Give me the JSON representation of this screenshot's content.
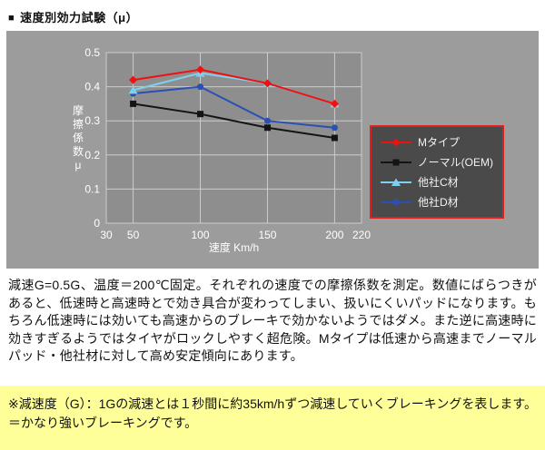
{
  "header": {
    "bullet": "■",
    "title": "速度別効力試験（μ）"
  },
  "chart_data": {
    "type": "line",
    "title": "速度別効力試験（μ）",
    "x": [
      50,
      100,
      150,
      200
    ],
    "series": [
      {
        "name": "Mタイプ",
        "color": "#ee1111",
        "marker": "diamond",
        "values": [
          0.42,
          0.45,
          0.41,
          0.35
        ]
      },
      {
        "name": "ノーマル(OEM)",
        "color": "#141414",
        "marker": "square",
        "values": [
          0.35,
          0.32,
          0.28,
          0.25
        ]
      },
      {
        "name": "他社C材",
        "color": "#7fd0f0",
        "marker": "triangle",
        "values": [
          0.39,
          0.44,
          0.41,
          0.35
        ]
      },
      {
        "name": "他社D材",
        "color": "#2a50b4",
        "marker": "circle",
        "values": [
          0.38,
          0.4,
          0.3,
          0.28
        ]
      }
    ],
    "xlabel": "速度 Km/h",
    "ylabel": "摩擦係数μ",
    "xlim": [
      30,
      220
    ],
    "ylim": [
      0,
      0.5
    ],
    "x_ticks": [
      30,
      50,
      100,
      150,
      200,
      220
    ],
    "y_ticks": [
      0,
      0.1,
      0.2,
      0.3,
      0.4,
      0.5
    ],
    "grid": true,
    "legend_position": "right-inside",
    "colors": {
      "chart_bg": "#9c9c9c",
      "plot_bg": "#8e8e8e",
      "grid": "#cccccc",
      "tick_text": "#ffffff",
      "legend_bg": "#4a4a4a",
      "legend_border": "#e02020",
      "legend_text": "#f2f2f2"
    }
  },
  "description": "減速G=0.5G、温度＝200℃固定。それぞれの速度での摩擦係数を測定。数値にばらつきがあると、低速時と高速時とで効き具合が変わってしまい、扱いにくいパッドになります。もちろん低速時には効いても高速からのブレーキで効かないようではダメ。また逆に高速時に効きすぎるようではタイヤがロックしやすく超危険。Mタイプは低速から高速までノーマルパッド・他社材に対して高め安定傾向にあります。",
  "note": {
    "text": "※減速度（G）：1Gの減速とは１秒間に約35km/hずつ減速していくブレーキングを表します。＝かなり強いブレーキングです。",
    "bg": "#ffff99"
  }
}
